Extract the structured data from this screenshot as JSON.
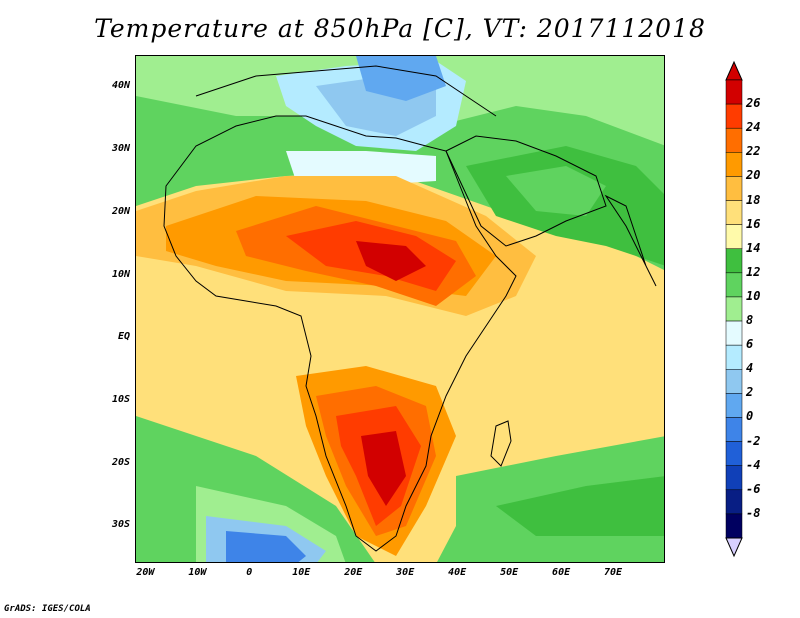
{
  "title": "Temperature at 850hPa [C], VT: 2017112018",
  "credit": "GrADS: IGES/COLA",
  "map": {
    "lat_ticks": [
      {
        "label": "40N",
        "lat": 40
      },
      {
        "label": "30N",
        "lat": 30
      },
      {
        "label": "20N",
        "lat": 20
      },
      {
        "label": "10N",
        "lat": 10
      },
      {
        "label": "EQ",
        "lat": 0
      },
      {
        "label": "10S",
        "lat": -10
      },
      {
        "label": "20S",
        "lat": -20
      },
      {
        "label": "30S",
        "lat": -30
      }
    ],
    "lon_ticks": [
      {
        "label": "20W",
        "lon": -20
      },
      {
        "label": "10W",
        "lon": -10
      },
      {
        "label": "0",
        "lon": 0
      },
      {
        "label": "10E",
        "lon": 10
      },
      {
        "label": "20E",
        "lon": 20
      },
      {
        "label": "30E",
        "lon": 30
      },
      {
        "label": "40E",
        "lon": 40
      },
      {
        "label": "50E",
        "lon": 50
      },
      {
        "label": "60E",
        "lon": 60
      },
      {
        "label": "70E",
        "lon": 70
      }
    ],
    "lon_range": [
      -22,
      80
    ],
    "lat_range": [
      -36,
      45
    ]
  },
  "colorbar": {
    "labels": [
      "26",
      "24",
      "22",
      "20",
      "18",
      "16",
      "14",
      "12",
      "10",
      "8",
      "6",
      "4",
      "2",
      "0",
      "-2",
      "-4",
      "-6",
      "-8"
    ],
    "colors": [
      "#d20000",
      "#ff3c00",
      "#ff6e00",
      "#ff9a00",
      "#ffbe40",
      "#ffe07a",
      "#fffaaa",
      "#3fbf3f",
      "#5fd35f",
      "#a0ee90",
      "#e4fbff",
      "#b4ebff",
      "#8fc8f0",
      "#60a8f0",
      "#3e84e8",
      "#2060d8",
      "#1040b8",
      "#081e84",
      "#000060"
    ]
  }
}
